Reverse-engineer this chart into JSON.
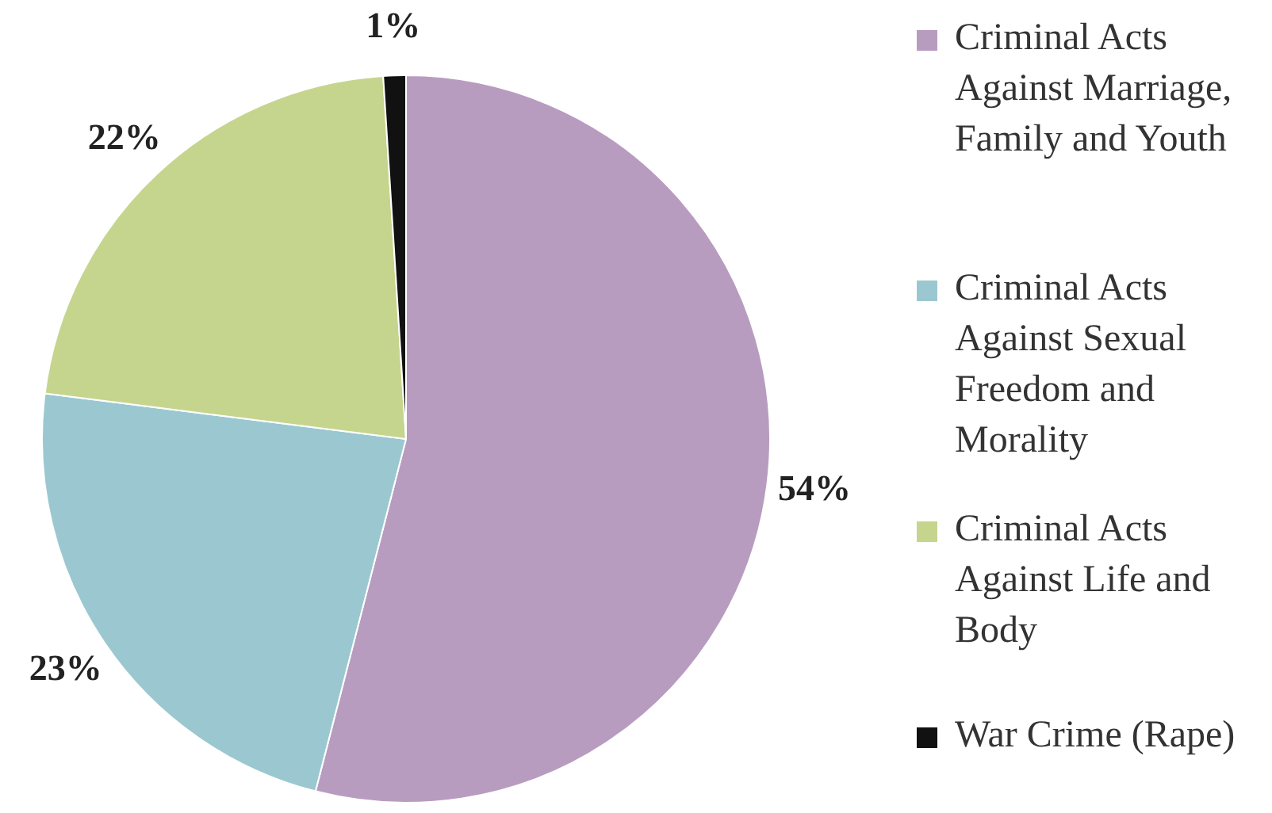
{
  "chart_data": {
    "type": "pie",
    "categories": [
      "Criminal Acts Against Marriage, Family and Youth",
      "Criminal Acts Against Sexual Freedom and Morality",
      "Criminal Acts Against Life and Body",
      "War Crime (Rape)"
    ],
    "values": [
      54,
      23,
      22,
      1
    ],
    "colors": [
      "#b89cc0",
      "#9bc8d0",
      "#c5d58e",
      "#111111"
    ],
    "value_labels": [
      "54%",
      "23%",
      "22%",
      "1%"
    ],
    "legend": "right"
  }
}
